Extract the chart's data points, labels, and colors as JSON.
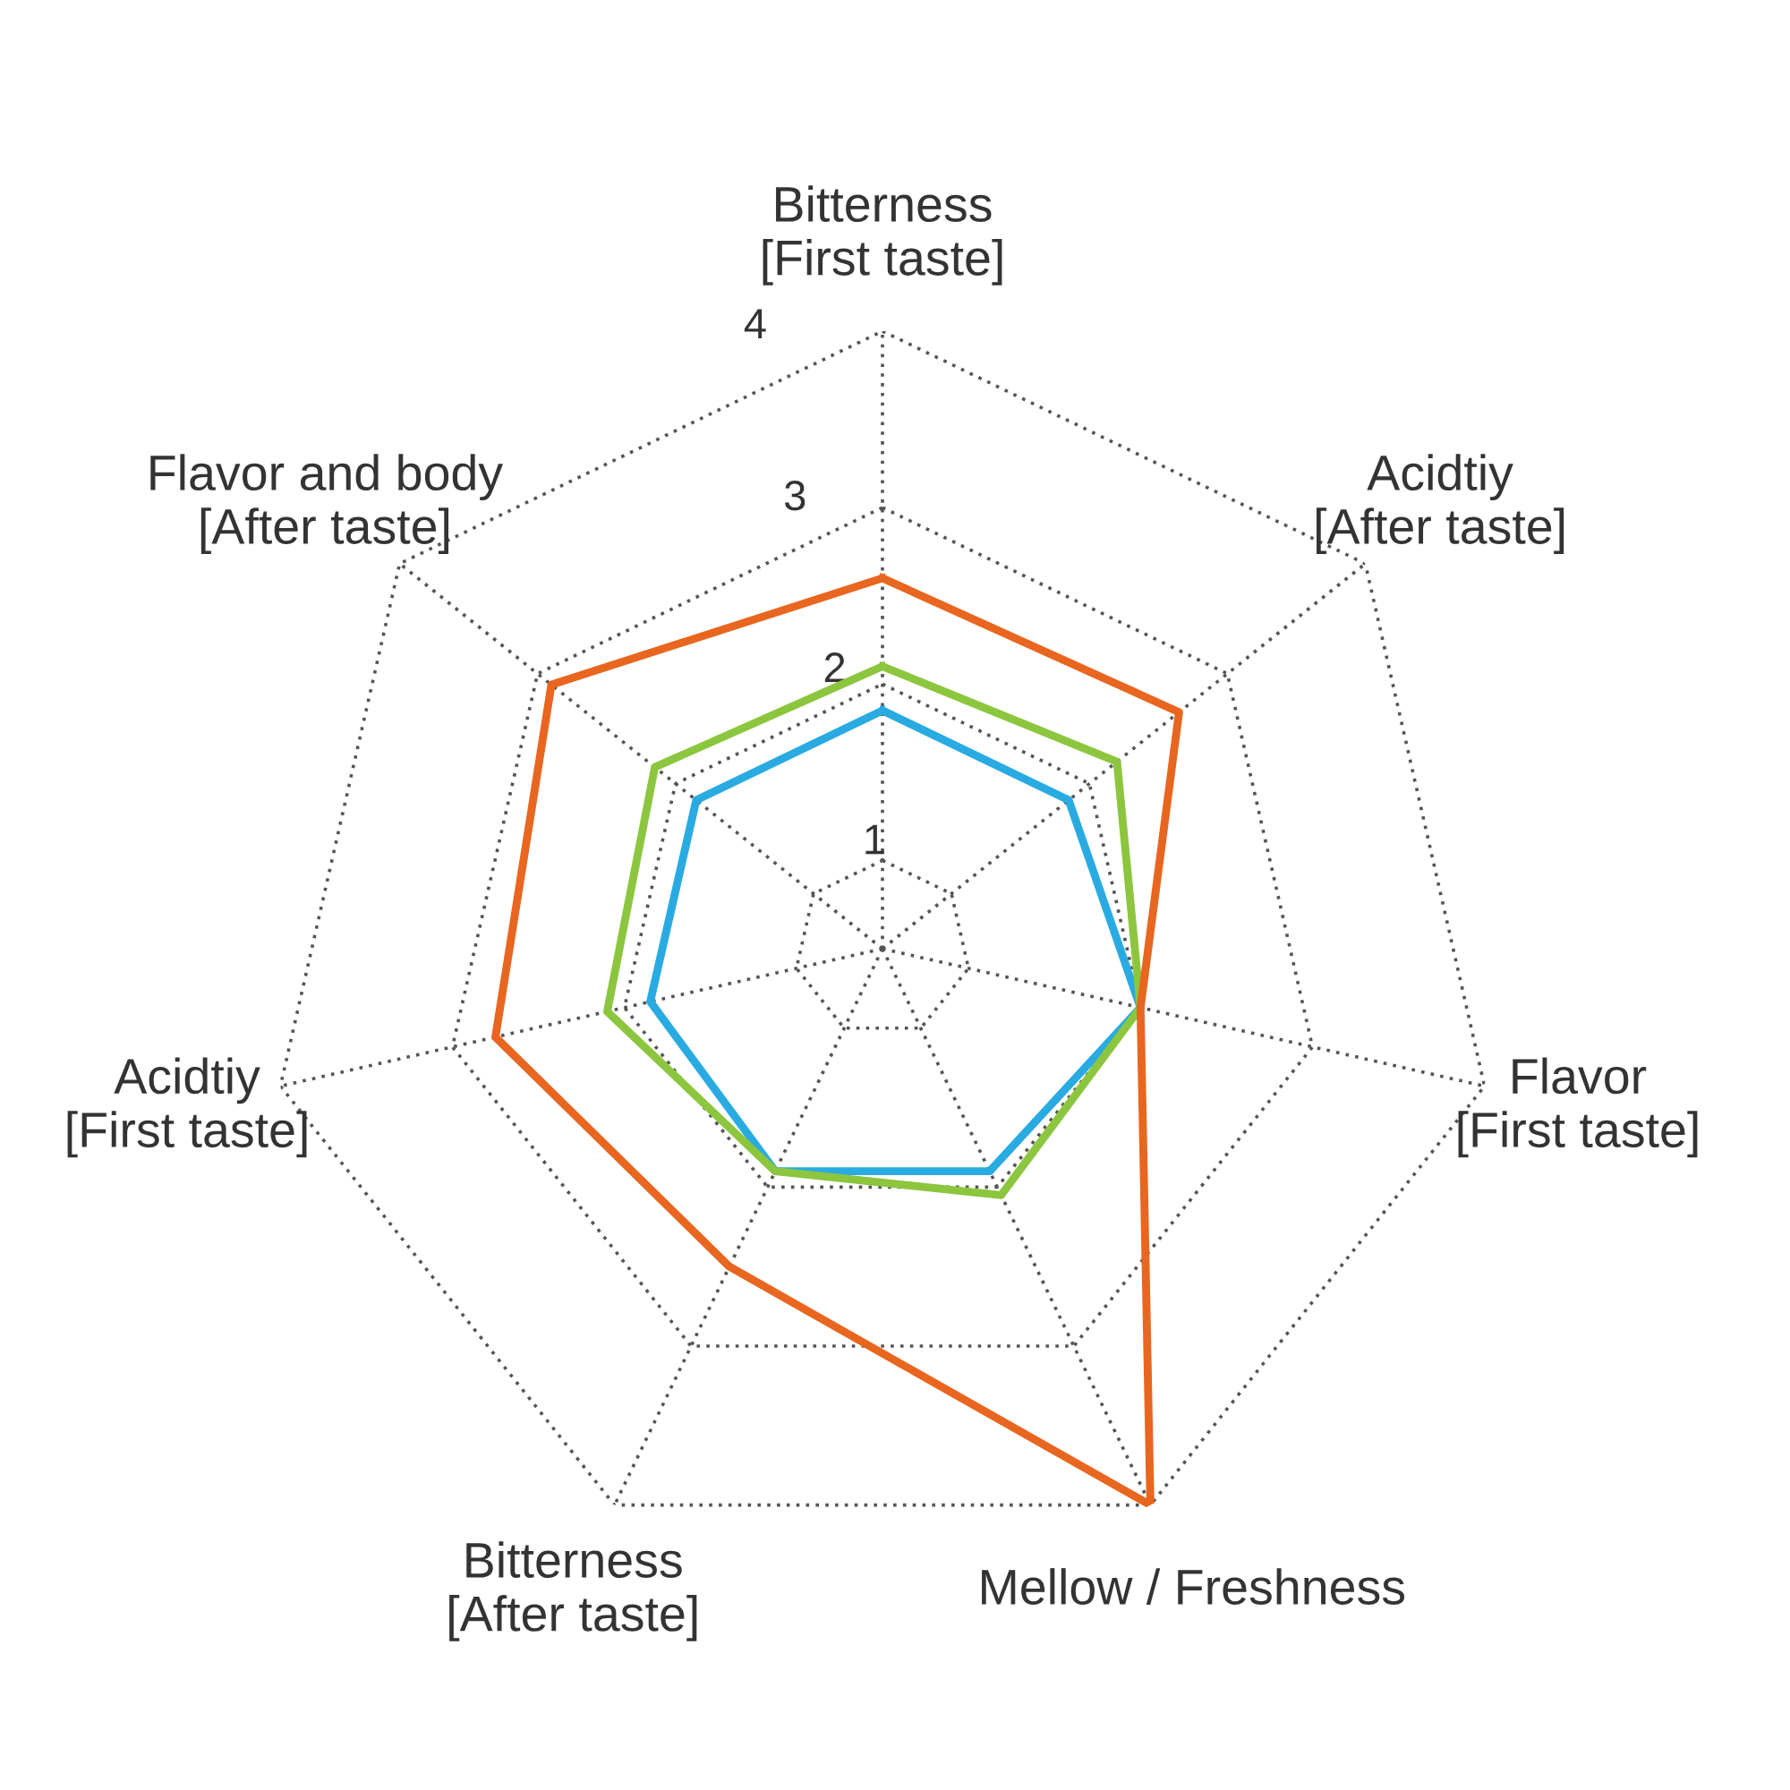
{
  "chart_data": {
    "type": "radar",
    "categories": [
      "Bitterness\n[First taste]",
      "Acidtiy\n[After taste]",
      "Flavor\n[First taste]",
      "Mellow / Freshness",
      "Bitterness\n[After taste]",
      "Acidtiy\n[First taste]",
      "Flavor and body\n[After taste]"
    ],
    "series": [
      {
        "color": "#29abe2",
        "values": [
          1.85,
          1.85,
          2.0,
          1.9,
          1.9,
          1.85,
          1.85
        ]
      },
      {
        "color": "#8cc63f",
        "values": [
          2.1,
          2.2,
          2.0,
          2.05,
          1.9,
          2.1,
          2.15
        ]
      },
      {
        "color": "#e8661f",
        "values": [
          2.6,
          2.65,
          2.0,
          4.0,
          2.5,
          2.75,
          2.9
        ]
      }
    ],
    "ylim": [
      0.5,
      4
    ],
    "yticks": [
      1,
      2,
      3,
      4
    ],
    "grid": true
  }
}
